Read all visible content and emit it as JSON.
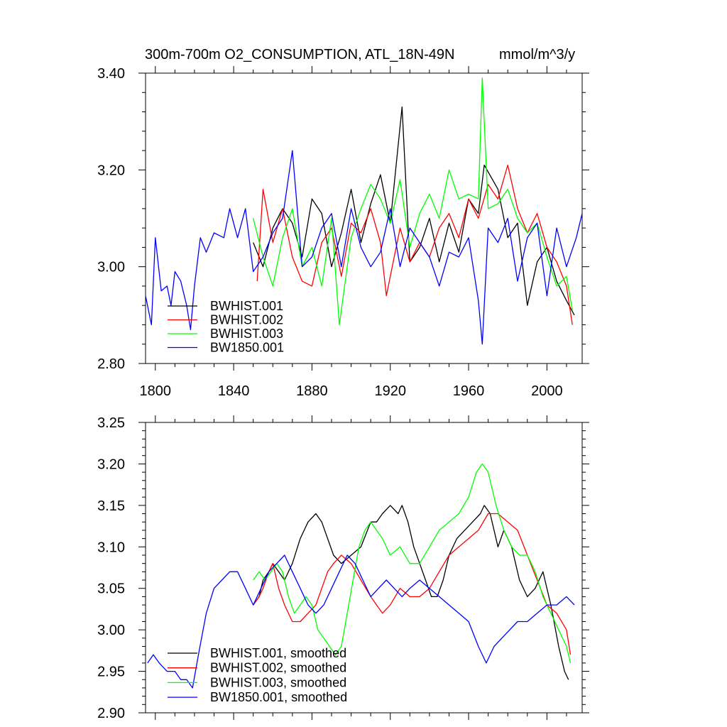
{
  "title": "300m-700m O2_CONSUMPTION, ATL_18N-49N",
  "units": "mmol/m^3/y",
  "colors": {
    "BWHIST.001": "#000000",
    "BWHIST.002": "#ff0000",
    "BWHIST.003": "#00ff00",
    "BW1850.001": "#0000ff"
  },
  "chart_data": [
    {
      "type": "line",
      "title": "300m-700m O2_CONSUMPTION, ATL_18N-49N",
      "units": "mmol/m^3/y",
      "xlim": [
        1795,
        2018
      ],
      "ylim": [
        2.8,
        3.4
      ],
      "xticks": [
        1800,
        1840,
        1880,
        1920,
        1960,
        2000
      ],
      "yticks": [
        "2.80",
        "3.00",
        "3.20",
        "3.40"
      ],
      "legend_position": "bottom-left",
      "series": [
        {
          "name": "BWHIST.001",
          "color": "#000000",
          "x": [
            1850,
            1855,
            1860,
            1865,
            1870,
            1875,
            1880,
            1885,
            1890,
            1895,
            1900,
            1905,
            1910,
            1915,
            1920,
            1926,
            1930,
            1935,
            1940,
            1945,
            1950,
            1955,
            1960,
            1965,
            1968,
            1975,
            1980,
            1985,
            1990,
            1995,
            2000,
            2005,
            2010,
            2014
          ],
          "y": [
            3.05,
            3.0,
            3.08,
            3.12,
            3.09,
            3.02,
            3.14,
            3.11,
            3.0,
            3.07,
            3.16,
            3.05,
            3.13,
            3.19,
            3.09,
            3.33,
            3.01,
            3.04,
            3.1,
            3.01,
            3.09,
            3.03,
            3.14,
            3.11,
            3.21,
            3.16,
            3.06,
            3.09,
            2.92,
            3.01,
            3.04,
            2.97,
            2.93,
            2.9
          ]
        },
        {
          "name": "BWHIST.002",
          "color": "#ff0000",
          "x": [
            1852,
            1855,
            1860,
            1865,
            1870,
            1875,
            1880,
            1885,
            1890,
            1895,
            1900,
            1905,
            1910,
            1915,
            1918,
            1925,
            1930,
            1935,
            1940,
            1945,
            1950,
            1955,
            1960,
            1965,
            1970,
            1975,
            1980,
            1985,
            1990,
            1995,
            2000,
            2005,
            2010,
            2013
          ],
          "y": [
            2.97,
            3.16,
            3.05,
            3.12,
            3.02,
            2.97,
            2.96,
            3.05,
            3.08,
            2.98,
            3.09,
            3.07,
            3.12,
            3.05,
            2.94,
            3.08,
            3.01,
            3.05,
            3.02,
            3.08,
            3.11,
            3.06,
            3.14,
            3.1,
            3.17,
            3.14,
            3.21,
            3.12,
            3.07,
            3.11,
            3.04,
            3.01,
            2.96,
            2.88
          ]
        },
        {
          "name": "BWHIST.003",
          "color": "#00ff00",
          "x": [
            1850,
            1855,
            1860,
            1865,
            1870,
            1875,
            1880,
            1885,
            1890,
            1894,
            1900,
            1905,
            1910,
            1915,
            1920,
            1925,
            1930,
            1935,
            1940,
            1945,
            1950,
            1955,
            1960,
            1965,
            1967,
            1970,
            1975,
            1980,
            1985,
            1990,
            1995,
            2000,
            2005,
            2010,
            2013
          ],
          "y": [
            3.1,
            3.02,
            2.96,
            3.06,
            3.12,
            3.0,
            3.04,
            2.96,
            3.1,
            2.88,
            3.06,
            3.12,
            3.17,
            3.14,
            3.09,
            3.18,
            3.04,
            3.11,
            3.15,
            3.1,
            3.2,
            3.14,
            3.15,
            3.14,
            3.39,
            3.12,
            3.13,
            3.16,
            3.1,
            3.07,
            3.09,
            3.02,
            2.96,
            2.98,
            2.91
          ]
        },
        {
          "name": "BW1850.001",
          "color": "#0000ff",
          "x": [
            1795,
            1798,
            1800,
            1803,
            1806,
            1808,
            1810,
            1813,
            1816,
            1818,
            1820,
            1823,
            1826,
            1830,
            1835,
            1838,
            1842,
            1846,
            1850,
            1855,
            1860,
            1865,
            1870,
            1875,
            1880,
            1885,
            1890,
            1895,
            1900,
            1905,
            1910,
            1915,
            1920,
            1925,
            1930,
            1935,
            1940,
            1945,
            1950,
            1955,
            1960,
            1965,
            1967,
            1970,
            1975,
            1980,
            1985,
            1990,
            1995,
            2000,
            2005,
            2010,
            2015,
            2018
          ],
          "y": [
            2.94,
            2.88,
            3.06,
            2.95,
            2.96,
            2.92,
            2.99,
            2.97,
            2.92,
            2.87,
            2.96,
            3.06,
            3.03,
            3.07,
            3.06,
            3.12,
            3.06,
            3.12,
            2.99,
            3.02,
            3.07,
            3.1,
            3.24,
            3.0,
            3.02,
            3.08,
            3.11,
            3.0,
            3.12,
            3.04,
            3.0,
            3.03,
            3.12,
            3.0,
            3.08,
            3.05,
            3.02,
            2.96,
            3.03,
            3.02,
            3.06,
            2.93,
            2.84,
            3.08,
            3.05,
            3.1,
            2.97,
            3.06,
            3.09,
            2.94,
            3.08,
            3.0,
            3.06,
            3.11
          ]
        }
      ]
    },
    {
      "type": "line",
      "title": "",
      "xlim": [
        1795,
        2018
      ],
      "ylim": [
        2.9,
        3.25
      ],
      "yticks": [
        "2.90",
        "2.95",
        "3.00",
        "3.05",
        "3.10",
        "3.15",
        "3.20",
        "3.25"
      ],
      "legend_position": "bottom-left",
      "series": [
        {
          "name": "BWHIST.001, smoothed",
          "color": "#000000",
          "x": [
            1850,
            1853,
            1855,
            1858,
            1860,
            1863,
            1866,
            1870,
            1874,
            1878,
            1882,
            1885,
            1888,
            1891,
            1895,
            1900,
            1905,
            1910,
            1913,
            1916,
            1920,
            1924,
            1926,
            1929,
            1932,
            1935,
            1938,
            1941,
            1944,
            1947,
            1950,
            1954,
            1958,
            1962,
            1966,
            1968,
            1971,
            1975,
            1978,
            1982,
            1986,
            1990,
            1994,
            1998,
            2002,
            2006,
            2009,
            2011
          ],
          "y": [
            3.03,
            3.04,
            3.06,
            3.07,
            3.08,
            3.07,
            3.06,
            3.08,
            3.11,
            3.13,
            3.14,
            3.13,
            3.11,
            3.09,
            3.08,
            3.09,
            3.1,
            3.13,
            3.13,
            3.14,
            3.15,
            3.14,
            3.15,
            3.13,
            3.1,
            3.08,
            3.06,
            3.04,
            3.04,
            3.06,
            3.09,
            3.11,
            3.12,
            3.13,
            3.14,
            3.15,
            3.14,
            3.1,
            3.12,
            3.1,
            3.06,
            3.04,
            3.05,
            3.07,
            3.03,
            2.98,
            2.95,
            2.94
          ]
        },
        {
          "name": "BWHIST.002, smoothed",
          "color": "#ff0000",
          "x": [
            1850,
            1853,
            1855,
            1858,
            1860,
            1863,
            1866,
            1870,
            1874,
            1878,
            1882,
            1885,
            1888,
            1891,
            1895,
            1900,
            1905,
            1910,
            1913,
            1916,
            1920,
            1925,
            1930,
            1935,
            1940,
            1945,
            1950,
            1955,
            1960,
            1965,
            1970,
            1975,
            1980,
            1985,
            1990,
            1995,
            2000,
            2005,
            2010,
            2012
          ],
          "y": [
            3.03,
            3.04,
            3.05,
            3.07,
            3.08,
            3.05,
            3.03,
            3.01,
            3.01,
            3.02,
            3.03,
            3.05,
            3.07,
            3.08,
            3.09,
            3.08,
            3.06,
            3.04,
            3.03,
            3.02,
            3.03,
            3.05,
            3.04,
            3.04,
            3.05,
            3.07,
            3.09,
            3.1,
            3.11,
            3.12,
            3.14,
            3.14,
            3.13,
            3.12,
            3.09,
            3.06,
            3.03,
            3.02,
            3.0,
            2.97
          ]
        },
        {
          "name": "BWHIST.003, smoothed",
          "color": "#00ff00",
          "x": [
            1850,
            1853,
            1856,
            1859,
            1862,
            1865,
            1868,
            1871,
            1874,
            1877,
            1880,
            1883,
            1886,
            1889,
            1892,
            1895,
            1898,
            1901,
            1904,
            1907,
            1910,
            1913,
            1916,
            1920,
            1925,
            1930,
            1935,
            1940,
            1945,
            1950,
            1955,
            1960,
            1964,
            1967,
            1970,
            1974,
            1978,
            1982,
            1986,
            1990,
            1994,
            1998,
            2002,
            2006,
            2010,
            2012
          ],
          "y": [
            3.06,
            3.07,
            3.06,
            3.07,
            3.08,
            3.07,
            3.04,
            3.02,
            3.03,
            3.04,
            3.03,
            3.0,
            2.99,
            2.98,
            2.97,
            2.98,
            3.02,
            3.06,
            3.1,
            3.12,
            3.13,
            3.12,
            3.11,
            3.09,
            3.1,
            3.08,
            3.08,
            3.1,
            3.12,
            3.13,
            3.14,
            3.16,
            3.19,
            3.2,
            3.19,
            3.15,
            3.12,
            3.1,
            3.09,
            3.09,
            3.07,
            3.04,
            3.02,
            3.0,
            2.98,
            2.96
          ]
        },
        {
          "name": "BW1850.001, smoothed",
          "color": "#0000ff",
          "x": [
            1796,
            1799,
            1802,
            1806,
            1810,
            1813,
            1816,
            1819,
            1822,
            1826,
            1830,
            1834,
            1838,
            1842,
            1846,
            1850,
            1854,
            1858,
            1862,
            1866,
            1870,
            1874,
            1878,
            1882,
            1886,
            1890,
            1894,
            1898,
            1902,
            1906,
            1910,
            1914,
            1918,
            1922,
            1926,
            1930,
            1935,
            1940,
            1945,
            1950,
            1955,
            1960,
            1965,
            1969,
            1973,
            1977,
            1981,
            1985,
            1990,
            1995,
            2000,
            2005,
            2010,
            2014
          ],
          "y": [
            2.96,
            2.97,
            2.96,
            2.95,
            2.95,
            2.94,
            2.94,
            2.93,
            2.97,
            3.02,
            3.05,
            3.06,
            3.07,
            3.07,
            3.05,
            3.03,
            3.05,
            3.07,
            3.08,
            3.09,
            3.07,
            3.05,
            3.03,
            3.02,
            3.03,
            3.05,
            3.07,
            3.09,
            3.08,
            3.06,
            3.04,
            3.05,
            3.06,
            3.05,
            3.04,
            3.05,
            3.06,
            3.05,
            3.04,
            3.03,
            3.02,
            3.01,
            2.98,
            2.96,
            2.98,
            2.99,
            3.0,
            3.01,
            3.01,
            3.02,
            3.03,
            3.03,
            3.04,
            3.03
          ]
        }
      ]
    }
  ]
}
